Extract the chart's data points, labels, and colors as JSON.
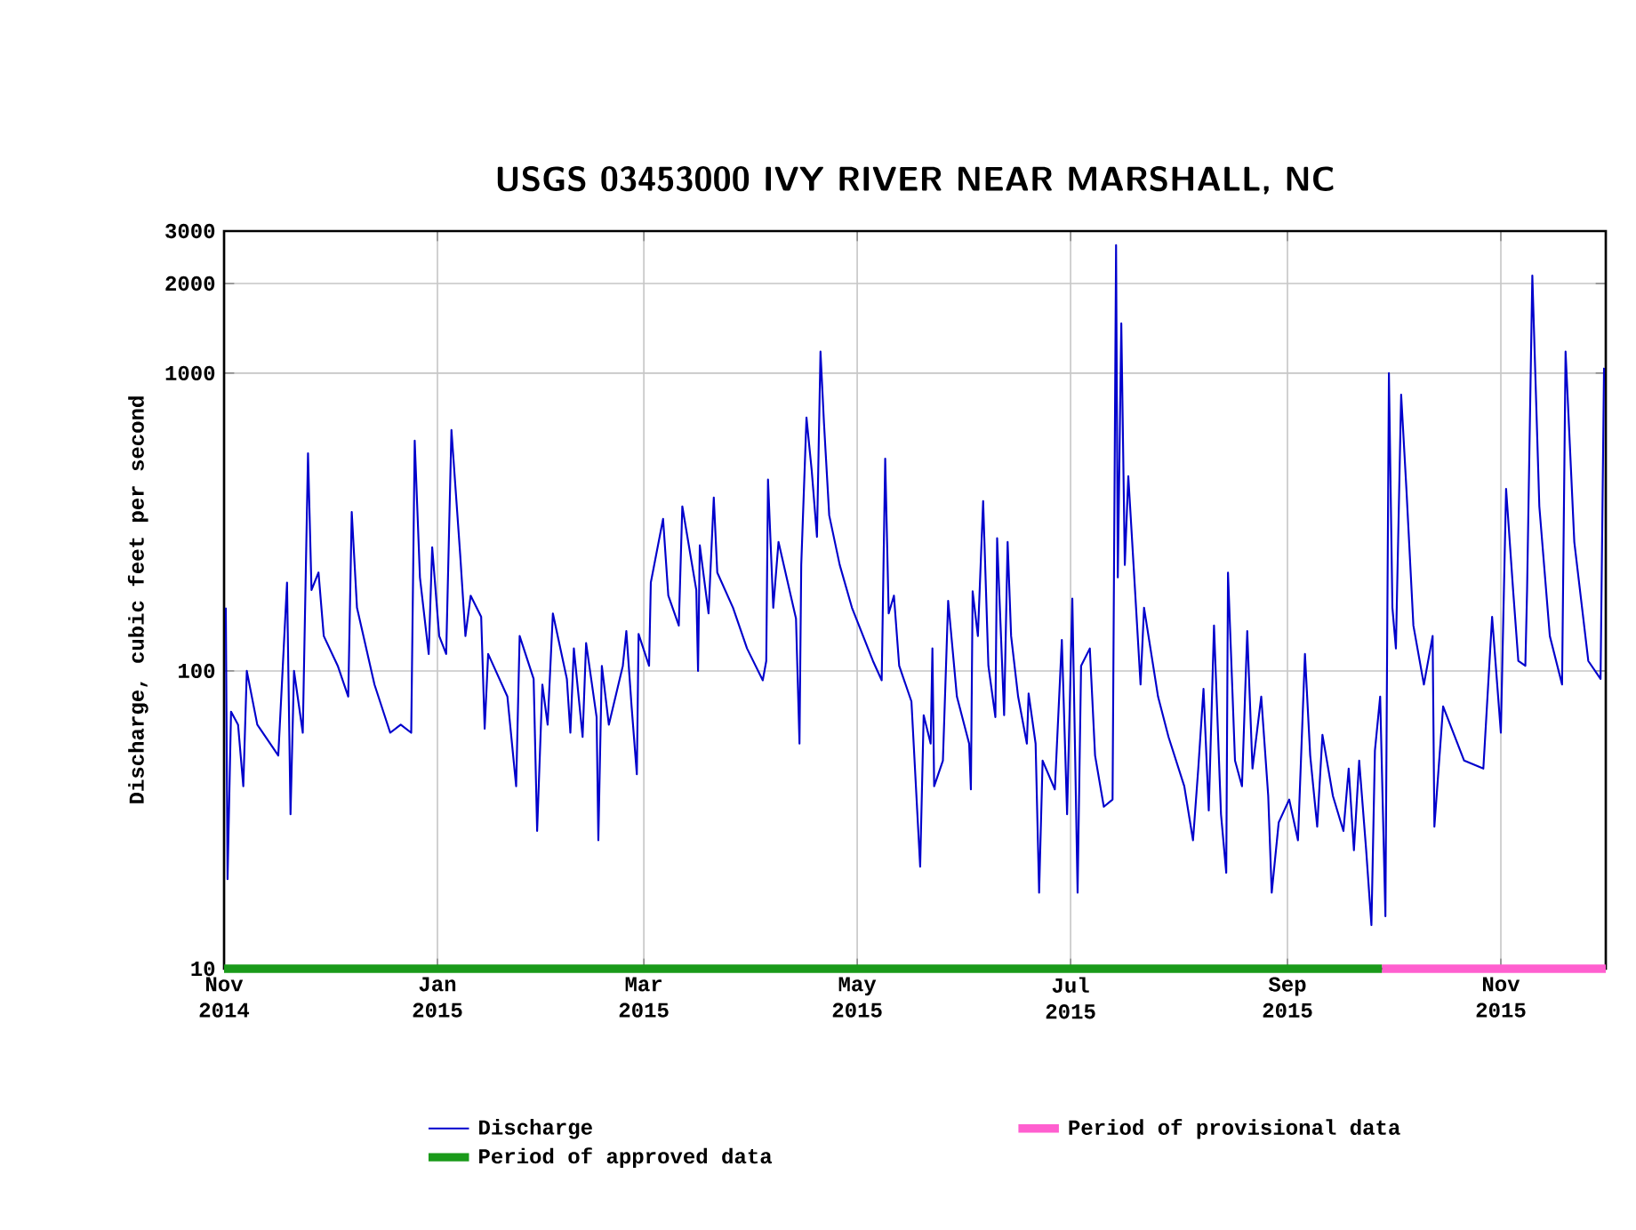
{
  "chart_data": {
    "type": "line",
    "title": "USGS 03453000 IVY RIVER NEAR MARSHALL, NC",
    "ylabel": "Discharge, cubic feet per second",
    "log": true,
    "grid": true,
    "legend": "bottom",
    "xlim": [
      "2014-11-01",
      "2015-12-01"
    ],
    "xticks": [
      {
        "value": "2014-11-01",
        "label": "Nov 2014"
      },
      {
        "value": "2015-01-01",
        "label": "Jan 2015"
      },
      {
        "value": "2015-03-01",
        "label": "Mar 2015"
      },
      {
        "value": "2015-05-01",
        "label": "May 2015"
      },
      {
        "value": "2015-07-01",
        "label": "Jul 2015"
      },
      {
        "value": "2015-09-01",
        "label": "Sep 2015"
      },
      {
        "value": "2015-11-01",
        "label": "Nov 2015"
      }
    ],
    "ylim": [
      10,
      3000
    ],
    "yticks": [
      10,
      100,
      1000,
      2000,
      3000
    ],
    "series": [
      {
        "name": "Period of provisional data",
        "color": "#ff5fcf",
        "x": [
          "2015-09-28",
          "2015-12-01"
        ],
        "values": [
          10,
          10
        ]
      },
      {
        "name": "Period of approved data",
        "color": "#1a9a1a",
        "x": [
          "2014-11-01",
          "2015-09-28"
        ],
        "values": [
          10,
          10
        ]
      },
      {
        "name": "Discharge",
        "color": "#0000cc",
        "x": [
          "2014-11-01T12:00",
          "2014-11-02",
          "2014-11-03",
          "2014-11-05",
          "2014-11-06T12:00",
          "2014-11-07T12:00",
          "2014-11-10T12:00",
          "2014-11-16T12:00",
          "2014-11-19",
          "2014-11-20",
          "2014-11-21",
          "2014-11-23T12:00",
          "2014-11-25",
          "2014-11-26",
          "2014-11-28",
          "2014-11-29T12:00",
          "2014-12-03T12:00",
          "2014-12-06T12:00",
          "2014-12-07T12:00",
          "2014-12-09",
          "2014-12-14",
          "2014-12-18T12:00",
          "2014-12-21T12:00",
          "2014-12-24T12:00",
          "2014-12-25T12:00",
          "2014-12-27",
          "2014-12-29T12:00",
          "2014-12-30T12:00",
          "2015-01-01T12:00",
          "2015-01-03T12:00",
          "2015-01-05",
          "2015-01-07T12:00",
          "2015-01-09",
          "2015-01-10T12:00",
          "2015-01-13T12:00",
          "2015-01-14T12:00",
          "2015-01-15T12:00",
          "2015-01-21",
          "2015-01-23T12:00",
          "2015-01-24T12:00",
          "2015-01-28T12:00",
          "2015-01-29T12:00",
          "2015-01-31",
          "2015-02-01T12:00",
          "2015-02-03",
          "2015-02-07",
          "2015-02-08",
          "2015-02-09",
          "2015-02-11T12:00",
          "2015-02-12T12:00",
          "2015-02-15T12:00",
          "2015-02-16",
          "2015-02-17",
          "2015-02-19",
          "2015-02-23",
          "2015-02-24",
          "2015-02-25T12:00",
          "2015-02-27",
          "2015-02-27T12:00",
          "2015-03-02T12:00",
          "2015-03-03",
          "2015-03-06T12:00",
          "2015-03-08",
          "2015-03-11",
          "2015-03-12",
          "2015-03-16",
          "2015-03-16T12:00",
          "2015-03-17",
          "2015-03-19T12:00",
          "2015-03-21",
          "2015-03-22",
          "2015-03-26T12:00",
          "2015-03-30T12:00",
          "2015-04-04",
          "2015-04-05",
          "2015-04-05T12:00",
          "2015-04-07",
          "2015-04-08T12:00",
          "2015-04-13T12:00",
          "2015-04-14T12:00",
          "2015-04-15",
          "2015-04-16T12:00",
          "2015-04-18",
          "2015-04-19T12:00",
          "2015-04-20T12:00",
          "2015-04-21T12:00",
          "2015-04-23",
          "2015-04-26",
          "2015-04-29T12:00",
          "2015-05-05T12:00",
          "2015-05-08",
          "2015-05-09",
          "2015-05-10",
          "2015-05-11T12:00",
          "2015-05-13",
          "2015-05-16T12:00",
          "2015-05-19",
          "2015-05-20",
          "2015-05-22",
          "2015-05-22T12:00",
          "2015-05-23",
          "2015-05-25T12:00",
          "2015-05-27",
          "2015-05-29T12:00",
          "2015-06-02",
          "2015-06-02T12:00",
          "2015-06-03",
          "2015-06-04T12:00",
          "2015-06-06",
          "2015-06-07T12:00",
          "2015-06-09T12:00",
          "2015-06-10",
          "2015-06-12",
          "2015-06-13",
          "2015-06-14",
          "2015-06-16",
          "2015-06-18T12:00",
          "2015-06-19",
          "2015-06-21",
          "2015-06-22",
          "2015-06-23",
          "2015-06-26T12:00",
          "2015-06-28T12:00",
          "2015-06-30",
          "2015-07-01T12:00",
          "2015-07-03",
          "2015-07-04",
          "2015-07-06T12:00",
          "2015-07-08",
          "2015-07-10T12:00",
          "2015-07-13",
          "2015-07-14",
          "2015-07-14T12:00",
          "2015-07-15T12:00",
          "2015-07-16T12:00",
          "2015-07-17T12:00",
          "2015-07-19",
          "2015-07-21",
          "2015-07-22",
          "2015-07-26",
          "2015-07-29",
          "2015-08-02T12:00",
          "2015-08-05",
          "2015-08-06T12:00",
          "2015-08-08",
          "2015-08-09T12:00",
          "2015-08-11",
          "2015-08-13",
          "2015-08-14T12:00",
          "2015-08-15",
          "2015-08-17",
          "2015-08-19",
          "2015-08-20T12:00",
          "2015-08-22",
          "2015-08-24T12:00",
          "2015-08-26T12:00",
          "2015-08-27T12:00",
          "2015-08-29T12:00",
          "2015-09-01T12:00",
          "2015-09-04",
          "2015-09-06",
          "2015-09-07T12:00",
          "2015-09-09T12:00",
          "2015-09-11",
          "2015-09-14",
          "2015-09-17",
          "2015-09-18T12:00",
          "2015-09-20",
          "2015-09-21T12:00",
          "2015-09-23T12:00",
          "2015-09-25",
          "2015-09-26",
          "2015-09-27T12:00",
          "2015-09-29",
          "2015-09-30",
          "2015-10-01",
          "2015-10-02",
          "2015-10-03T12:00",
          "2015-10-05",
          "2015-10-07",
          "2015-10-10",
          "2015-10-12T12:00",
          "2015-10-13",
          "2015-10-15T12:00",
          "2015-10-21T12:00",
          "2015-10-27",
          "2015-10-29T12:00",
          "2015-11-01",
          "2015-11-02T12:00",
          "2015-11-04T12:00",
          "2015-11-06",
          "2015-11-08",
          "2015-11-08T12:00",
          "2015-11-10",
          "2015-11-12",
          "2015-11-15",
          "2015-11-18T12:00",
          "2015-11-19T12:00",
          "2015-11-22",
          "2015-11-26",
          "2015-11-29T12:00",
          "2015-11-30T12:00"
        ],
        "values": [
          163,
          20,
          73,
          66,
          41,
          100,
          66,
          52,
          198,
          33,
          100,
          62,
          538,
          187,
          214,
          131,
          104,
          82,
          342,
          163,
          90,
          62,
          66,
          62,
          593,
          206,
          114,
          260,
          131,
          114,
          644,
          246,
          131,
          179,
          152,
          64,
          114,
          82,
          41,
          131,
          94,
          29,
          90,
          66,
          156,
          94,
          62,
          119,
          60,
          124,
          70,
          27,
          104,
          66,
          104,
          136,
          76,
          45,
          133,
          104,
          198,
          324,
          179,
          142,
          357,
          187,
          100,
          264,
          156,
          382,
          214,
          163,
          119,
          93,
          108,
          439,
          163,
          271,
          150,
          57,
          227,
          709,
          470,
          282,
          1181,
          680,
          333,
          227,
          163,
          108,
          93,
          516,
          156,
          179,
          104,
          79,
          22,
          71,
          57,
          119,
          41,
          50,
          172,
          82,
          57,
          40,
          185,
          131,
          372,
          104,
          70,
          279,
          71,
          271,
          131,
          82,
          57,
          84,
          57,
          18,
          50,
          40,
          127,
          33,
          175,
          18,
          104,
          119,
          52,
          35,
          37,
          2692,
          206,
          1469,
          227,
          451,
          227,
          90,
          163,
          82,
          60,
          41,
          27,
          47,
          87,
          34,
          142,
          33,
          21,
          214,
          50,
          41,
          136,
          47,
          82,
          38,
          18,
          31,
          37,
          27,
          114,
          52,
          30,
          61,
          38,
          29,
          47,
          25,
          50,
          25,
          14,
          54,
          82,
          15,
          1000,
          163,
          119,
          847,
          409,
          142,
          90,
          131,
          30,
          76,
          50,
          47,
          152,
          62,
          409,
          187,
          108,
          104,
          187,
          2128,
          357,
          131,
          90,
          1181,
          271,
          108,
          94,
          1042
        ]
      }
    ]
  }
}
